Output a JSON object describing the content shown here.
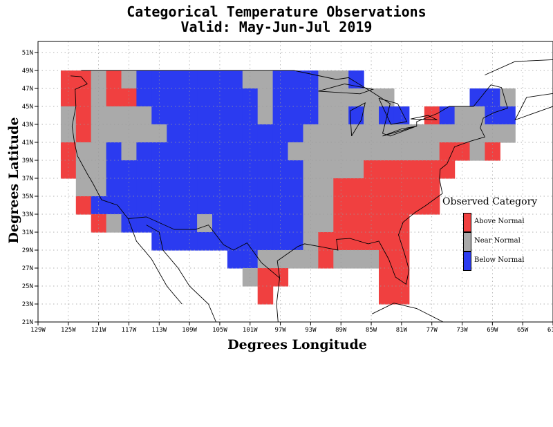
{
  "title": {
    "line1": "Categorical Temperature Observations",
    "line2": "Valid: May-Jun-Jul 2019"
  },
  "axes": {
    "xlabel": "Degrees Longitude",
    "ylabel": "Degrees Latitude",
    "x_ticks": [
      "129W",
      "125W",
      "121W",
      "117W",
      "113W",
      "109W",
      "105W",
      "101W",
      "97W",
      "93W",
      "89W",
      "85W",
      "81W",
      "77W",
      "73W",
      "69W",
      "65W",
      "61W"
    ],
    "y_ticks": [
      "51N",
      "49N",
      "47N",
      "45N",
      "43N",
      "41N",
      "39N",
      "37N",
      "35N",
      "33N",
      "31N",
      "29N",
      "27N",
      "25N",
      "23N",
      "21N"
    ]
  },
  "legend": {
    "title": "Observed Category",
    "items": [
      {
        "label": "Above Normal",
        "color": "#f04040"
      },
      {
        "label": "Near Normal",
        "color": "#aaaaaa"
      },
      {
        "label": "Below Normal",
        "color": "#2b3bf0"
      }
    ]
  },
  "chart_data": {
    "type": "heatmap",
    "title": "Categorical Temperature Observations",
    "subtitle": "Valid: May-Jun-Jul 2019",
    "xlabel": "Degrees Longitude",
    "ylabel": "Degrees Latitude",
    "lon_range": [
      -129,
      -61
    ],
    "lat_range": [
      21,
      52
    ],
    "grid": true,
    "legend_position": "right",
    "category_colors": {
      "A": "#f04040",
      "N": "#aaaaaa",
      "B": "#2b3bf0"
    },
    "cell_size_deg": 2,
    "rows": [
      {
        "lat": [
          47,
          49
        ],
        "cells": [
          [
            -125,
            "A"
          ],
          [
            -123,
            "A"
          ],
          [
            -121,
            "N"
          ],
          [
            -119,
            "A"
          ],
          [
            -117,
            "N"
          ],
          [
            -115,
            "B"
          ],
          [
            -113,
            "B"
          ],
          [
            -111,
            "B"
          ],
          [
            -109,
            "B"
          ],
          [
            -107,
            "B"
          ],
          [
            -105,
            "B"
          ],
          [
            -103,
            "B"
          ],
          [
            -101,
            "N"
          ],
          [
            -99,
            "N"
          ],
          [
            -97,
            "B"
          ],
          [
            -95,
            "B"
          ],
          [
            -93,
            "B"
          ],
          [
            -91,
            "N"
          ],
          [
            -89,
            "N"
          ],
          [
            -87,
            "B"
          ]
        ]
      },
      {
        "lat": [
          45,
          47
        ],
        "cells": [
          [
            -125,
            "A"
          ],
          [
            -123,
            "A"
          ],
          [
            -121,
            "N"
          ],
          [
            -119,
            "A"
          ],
          [
            -117,
            "A"
          ],
          [
            -115,
            "B"
          ],
          [
            -113,
            "B"
          ],
          [
            -111,
            "B"
          ],
          [
            -109,
            "B"
          ],
          [
            -107,
            "B"
          ],
          [
            -105,
            "B"
          ],
          [
            -103,
            "B"
          ],
          [
            -101,
            "B"
          ],
          [
            -99,
            "N"
          ],
          [
            -97,
            "B"
          ],
          [
            -95,
            "B"
          ],
          [
            -93,
            "B"
          ],
          [
            -91,
            "N"
          ],
          [
            -89,
            "N"
          ],
          [
            -87,
            "N"
          ],
          [
            -85,
            "N"
          ],
          [
            -83,
            "N"
          ],
          [
            -71,
            "B"
          ],
          [
            -69,
            "B"
          ],
          [
            -67,
            "N"
          ]
        ]
      },
      {
        "lat": [
          43,
          45
        ],
        "cells": [
          [
            -125,
            "N"
          ],
          [
            -123,
            "A"
          ],
          [
            -121,
            "N"
          ],
          [
            -119,
            "N"
          ],
          [
            -117,
            "N"
          ],
          [
            -115,
            "N"
          ],
          [
            -113,
            "B"
          ],
          [
            -111,
            "B"
          ],
          [
            -109,
            "B"
          ],
          [
            -107,
            "B"
          ],
          [
            -105,
            "B"
          ],
          [
            -103,
            "B"
          ],
          [
            -101,
            "B"
          ],
          [
            -99,
            "N"
          ],
          [
            -97,
            "B"
          ],
          [
            -95,
            "B"
          ],
          [
            -93,
            "B"
          ],
          [
            -91,
            "N"
          ],
          [
            -89,
            "N"
          ],
          [
            -87,
            "B"
          ],
          [
            -85,
            "N"
          ],
          [
            -83,
            "B"
          ],
          [
            -81,
            "B"
          ],
          [
            -77,
            "A"
          ],
          [
            -75,
            "B"
          ],
          [
            -73,
            "N"
          ],
          [
            -71,
            "N"
          ],
          [
            -69,
            "B"
          ],
          [
            -67,
            "B"
          ]
        ]
      },
      {
        "lat": [
          41,
          43
        ],
        "cells": [
          [
            -125,
            "N"
          ],
          [
            -123,
            "A"
          ],
          [
            -121,
            "N"
          ],
          [
            -119,
            "N"
          ],
          [
            -117,
            "N"
          ],
          [
            -115,
            "N"
          ],
          [
            -113,
            "N"
          ],
          [
            -111,
            "B"
          ],
          [
            -109,
            "B"
          ],
          [
            -107,
            "B"
          ],
          [
            -105,
            "B"
          ],
          [
            -103,
            "B"
          ],
          [
            -101,
            "B"
          ],
          [
            -99,
            "B"
          ],
          [
            -97,
            "B"
          ],
          [
            -95,
            "B"
          ],
          [
            -93,
            "N"
          ],
          [
            -91,
            "N"
          ],
          [
            -89,
            "N"
          ],
          [
            -87,
            "N"
          ],
          [
            -85,
            "N"
          ],
          [
            -83,
            "N"
          ],
          [
            -81,
            "N"
          ],
          [
            -79,
            "N"
          ],
          [
            -77,
            "N"
          ],
          [
            -75,
            "N"
          ],
          [
            -73,
            "N"
          ],
          [
            -71,
            "N"
          ],
          [
            -69,
            "N"
          ],
          [
            -67,
            "N"
          ]
        ]
      },
      {
        "lat": [
          39,
          41
        ],
        "cells": [
          [
            -125,
            "A"
          ],
          [
            -123,
            "N"
          ],
          [
            -121,
            "N"
          ],
          [
            -119,
            "B"
          ],
          [
            -117,
            "N"
          ],
          [
            -115,
            "B"
          ],
          [
            -113,
            "B"
          ],
          [
            -111,
            "B"
          ],
          [
            -109,
            "B"
          ],
          [
            -107,
            "B"
          ],
          [
            -105,
            "B"
          ],
          [
            -103,
            "B"
          ],
          [
            -101,
            "B"
          ],
          [
            -99,
            "B"
          ],
          [
            -97,
            "B"
          ],
          [
            -95,
            "N"
          ],
          [
            -93,
            "N"
          ],
          [
            -91,
            "N"
          ],
          [
            -89,
            "N"
          ],
          [
            -87,
            "N"
          ],
          [
            -85,
            "N"
          ],
          [
            -83,
            "N"
          ],
          [
            -81,
            "N"
          ],
          [
            -79,
            "N"
          ],
          [
            -77,
            "N"
          ],
          [
            -75,
            "A"
          ],
          [
            -73,
            "A"
          ],
          [
            -71,
            "N"
          ],
          [
            -69,
            "A"
          ]
        ]
      },
      {
        "lat": [
          37,
          39
        ],
        "cells": [
          [
            -125,
            "A"
          ],
          [
            -123,
            "N"
          ],
          [
            -121,
            "N"
          ],
          [
            -119,
            "B"
          ],
          [
            -117,
            "B"
          ],
          [
            -115,
            "B"
          ],
          [
            -113,
            "B"
          ],
          [
            -111,
            "B"
          ],
          [
            -109,
            "B"
          ],
          [
            -107,
            "B"
          ],
          [
            -105,
            "B"
          ],
          [
            -103,
            "B"
          ],
          [
            -101,
            "B"
          ],
          [
            -99,
            "B"
          ],
          [
            -97,
            "B"
          ],
          [
            -95,
            "B"
          ],
          [
            -93,
            "N"
          ],
          [
            -91,
            "N"
          ],
          [
            -89,
            "N"
          ],
          [
            -87,
            "N"
          ],
          [
            -85,
            "A"
          ],
          [
            -83,
            "A"
          ],
          [
            -81,
            "A"
          ],
          [
            -79,
            "A"
          ],
          [
            -77,
            "A"
          ],
          [
            -75,
            "A"
          ]
        ]
      },
      {
        "lat": [
          35,
          37
        ],
        "cells": [
          [
            -123,
            "N"
          ],
          [
            -121,
            "N"
          ],
          [
            -119,
            "B"
          ],
          [
            -117,
            "B"
          ],
          [
            -115,
            "B"
          ],
          [
            -113,
            "B"
          ],
          [
            -111,
            "B"
          ],
          [
            -109,
            "B"
          ],
          [
            -107,
            "B"
          ],
          [
            -105,
            "B"
          ],
          [
            -103,
            "B"
          ],
          [
            -101,
            "B"
          ],
          [
            -99,
            "B"
          ],
          [
            -97,
            "B"
          ],
          [
            -95,
            "B"
          ],
          [
            -93,
            "N"
          ],
          [
            -91,
            "N"
          ],
          [
            -89,
            "A"
          ],
          [
            -87,
            "A"
          ],
          [
            -85,
            "A"
          ],
          [
            -83,
            "A"
          ],
          [
            -81,
            "A"
          ],
          [
            -79,
            "A"
          ],
          [
            -77,
            "A"
          ]
        ]
      },
      {
        "lat": [
          33,
          35
        ],
        "cells": [
          [
            -123,
            "A"
          ],
          [
            -121,
            "B"
          ],
          [
            -119,
            "B"
          ],
          [
            -117,
            "B"
          ],
          [
            -115,
            "B"
          ],
          [
            -113,
            "B"
          ],
          [
            -111,
            "B"
          ],
          [
            -109,
            "B"
          ],
          [
            -107,
            "B"
          ],
          [
            -105,
            "B"
          ],
          [
            -103,
            "B"
          ],
          [
            -101,
            "B"
          ],
          [
            -99,
            "B"
          ],
          [
            -97,
            "B"
          ],
          [
            -95,
            "B"
          ],
          [
            -93,
            "N"
          ],
          [
            -91,
            "N"
          ],
          [
            -89,
            "A"
          ],
          [
            -87,
            "A"
          ],
          [
            -85,
            "A"
          ],
          [
            -83,
            "A"
          ],
          [
            -81,
            "A"
          ],
          [
            -79,
            "A"
          ],
          [
            -77,
            "A"
          ]
        ]
      },
      {
        "lat": [
          31,
          33
        ],
        "cells": [
          [
            -121,
            "A"
          ],
          [
            -119,
            "N"
          ],
          [
            -117,
            "B"
          ],
          [
            -115,
            "B"
          ],
          [
            -113,
            "B"
          ],
          [
            -111,
            "B"
          ],
          [
            -109,
            "B"
          ],
          [
            -107,
            "N"
          ],
          [
            -105,
            "B"
          ],
          [
            -103,
            "B"
          ],
          [
            -101,
            "B"
          ],
          [
            -99,
            "B"
          ],
          [
            -97,
            "B"
          ],
          [
            -95,
            "B"
          ],
          [
            -93,
            "N"
          ],
          [
            -91,
            "N"
          ],
          [
            -89,
            "A"
          ],
          [
            -87,
            "A"
          ],
          [
            -85,
            "A"
          ],
          [
            -83,
            "A"
          ],
          [
            -81,
            "A"
          ]
        ]
      },
      {
        "lat": [
          29,
          31
        ],
        "cells": [
          [
            -113,
            "B"
          ],
          [
            -111,
            "B"
          ],
          [
            -109,
            "B"
          ],
          [
            -107,
            "B"
          ],
          [
            -105,
            "B"
          ],
          [
            -103,
            "B"
          ],
          [
            -101,
            "B"
          ],
          [
            -99,
            "B"
          ],
          [
            -97,
            "B"
          ],
          [
            -95,
            "B"
          ],
          [
            -93,
            "N"
          ],
          [
            -91,
            "A"
          ],
          [
            -89,
            "A"
          ],
          [
            -87,
            "A"
          ],
          [
            -85,
            "A"
          ],
          [
            -83,
            "A"
          ],
          [
            -81,
            "A"
          ]
        ]
      },
      {
        "lat": [
          27,
          29
        ],
        "cells": [
          [
            -103,
            "B"
          ],
          [
            -101,
            "B"
          ],
          [
            -99,
            "N"
          ],
          [
            -97,
            "N"
          ],
          [
            -95,
            "N"
          ],
          [
            -93,
            "N"
          ],
          [
            -91,
            "A"
          ],
          [
            -89,
            "N"
          ],
          [
            -87,
            "N"
          ],
          [
            -85,
            "N"
          ],
          [
            -83,
            "A"
          ],
          [
            -81,
            "A"
          ]
        ]
      },
      {
        "lat": [
          25,
          27
        ],
        "cells": [
          [
            -101,
            "N"
          ],
          [
            -99,
            "A"
          ],
          [
            -97,
            "A"
          ],
          [
            -83,
            "A"
          ],
          [
            -81,
            "A"
          ]
        ]
      },
      {
        "lat": [
          23,
          25
        ],
        "cells": [
          [
            -99,
            "A"
          ],
          [
            -83,
            "A"
          ],
          [
            -81,
            "A"
          ]
        ]
      }
    ]
  }
}
